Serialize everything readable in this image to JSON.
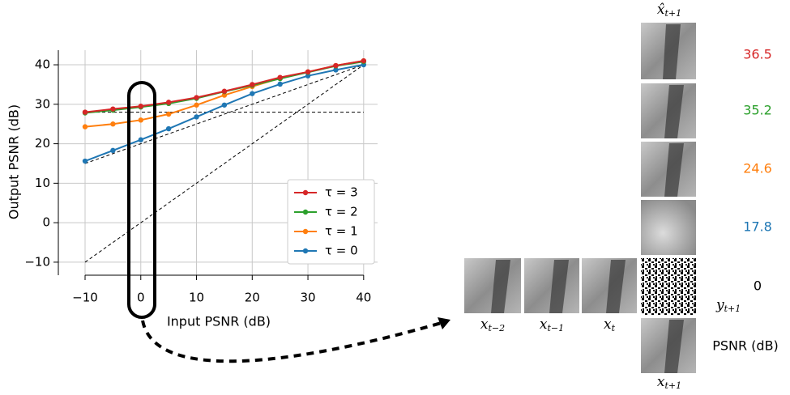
{
  "chart_data": {
    "type": "line",
    "xlabel": "Input PSNR (dB)",
    "ylabel": "Output PSNR (dB)",
    "x": [
      -10,
      -5,
      0,
      5,
      10,
      15,
      20,
      25,
      30,
      35,
      40
    ],
    "xlim": [
      -14.8,
      42.5
    ],
    "ylim": [
      -13.3,
      43.7
    ],
    "xticks": [
      {
        "value": -10,
        "label": "−10"
      },
      0,
      10,
      20,
      30,
      40
    ],
    "yticks": [
      {
        "value": -10,
        "label": "−10"
      },
      0,
      10,
      20,
      30,
      40
    ],
    "grid": true,
    "legend": "lower right",
    "series": [
      {
        "name": "τ = 3",
        "color": "#d62728",
        "values": [
          28,
          28.8,
          29.5,
          30.5,
          31.7,
          33.3,
          35,
          36.8,
          38.2,
          39.8,
          41
        ]
      },
      {
        "name": "τ = 2",
        "color": "#2ca02c",
        "values": [
          27.8,
          28.5,
          29.3,
          30.2,
          31.5,
          33.2,
          34.8,
          36.5,
          38.1,
          39.7,
          40.8
        ]
      },
      {
        "name": "τ = 1",
        "color": "#ff7f0e",
        "values": [
          24.3,
          25,
          26,
          27.5,
          29.8,
          32.3,
          34.5,
          36.6,
          38.2,
          39.8,
          41
        ]
      },
      {
        "name": "τ = 0",
        "color": "#1f77b4",
        "values": [
          15.6,
          18.3,
          21,
          23.8,
          26.8,
          29.8,
          32.7,
          35.1,
          37.2,
          38.7,
          40
        ]
      }
    ],
    "reference_lines": [
      {
        "x": [
          -10,
          40
        ],
        "y": [
          -10,
          40
        ]
      },
      {
        "x": [
          -10,
          40
        ],
        "y": [
          28,
          28
        ]
      },
      {
        "x": [
          -10,
          40
        ],
        "y": [
          15,
          40
        ]
      }
    ]
  },
  "figure": {
    "target": {
      "base": "x̂",
      "sub": "t+1"
    },
    "inputs": [
      {
        "base": "x",
        "sub": "t−2"
      },
      {
        "base": "x",
        "sub": "t−1"
      },
      {
        "base": "x",
        "sub": "t"
      }
    ],
    "noisy": {
      "base": "y",
      "sub": "t+1"
    },
    "clean": {
      "base": "x",
      "sub": "t+1"
    },
    "psnr_label": "PSNR (dB)",
    "psnr": [
      {
        "value": 36.5,
        "color": "#d62728"
      },
      {
        "value": 35.2,
        "color": "#2ca02c"
      },
      {
        "value": 24.6,
        "color": "#ff7f0e"
      },
      {
        "value": 17.8,
        "color": "#1f77b4"
      },
      {
        "value": 0,
        "color": "#000000"
      }
    ]
  }
}
